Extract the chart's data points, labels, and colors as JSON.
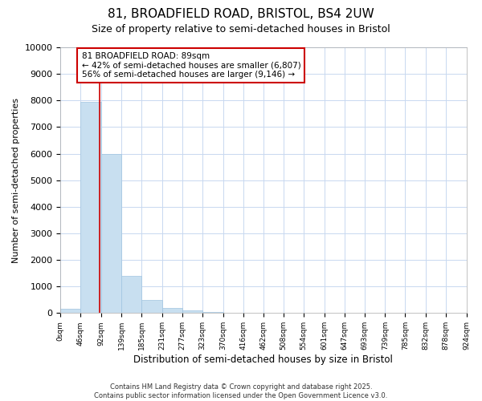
{
  "title_line1": "81, BROADFIELD ROAD, BRISTOL, BS4 2UW",
  "title_line2": "Size of property relative to semi-detached houses in Bristol",
  "xlabel": "Distribution of semi-detached houses by size in Bristol",
  "ylabel": "Number of semi-detached properties",
  "bar_values": [
    150,
    7950,
    6000,
    1400,
    500,
    200,
    100,
    30,
    15,
    10,
    5,
    3,
    2,
    1,
    1,
    1,
    1,
    0,
    0,
    0
  ],
  "bin_edges": [
    0,
    46,
    92,
    139,
    185,
    231,
    277,
    323,
    370,
    416,
    462,
    508,
    554,
    601,
    647,
    693,
    739,
    785,
    832,
    878,
    924
  ],
  "bar_color": "#c8dff0",
  "bar_edge_color": "#a0c4e0",
  "property_line_x": 89,
  "property_line_color": "#cc0000",
  "ylim": [
    0,
    10000
  ],
  "yticks": [
    0,
    1000,
    2000,
    3000,
    4000,
    5000,
    6000,
    7000,
    8000,
    9000,
    10000
  ],
  "annotation_title": "81 BROADFIELD ROAD: 89sqm",
  "annotation_line1": "← 42% of semi-detached houses are smaller (6,807)",
  "annotation_line2": "56% of semi-detached houses are larger (9,146) →",
  "annotation_box_color": "#cc0000",
  "footer_line1": "Contains HM Land Registry data © Crown copyright and database right 2025.",
  "footer_line2": "Contains public sector information licensed under the Open Government Licence v3.0.",
  "background_color": "#ffffff",
  "grid_color": "#c8d8f0"
}
